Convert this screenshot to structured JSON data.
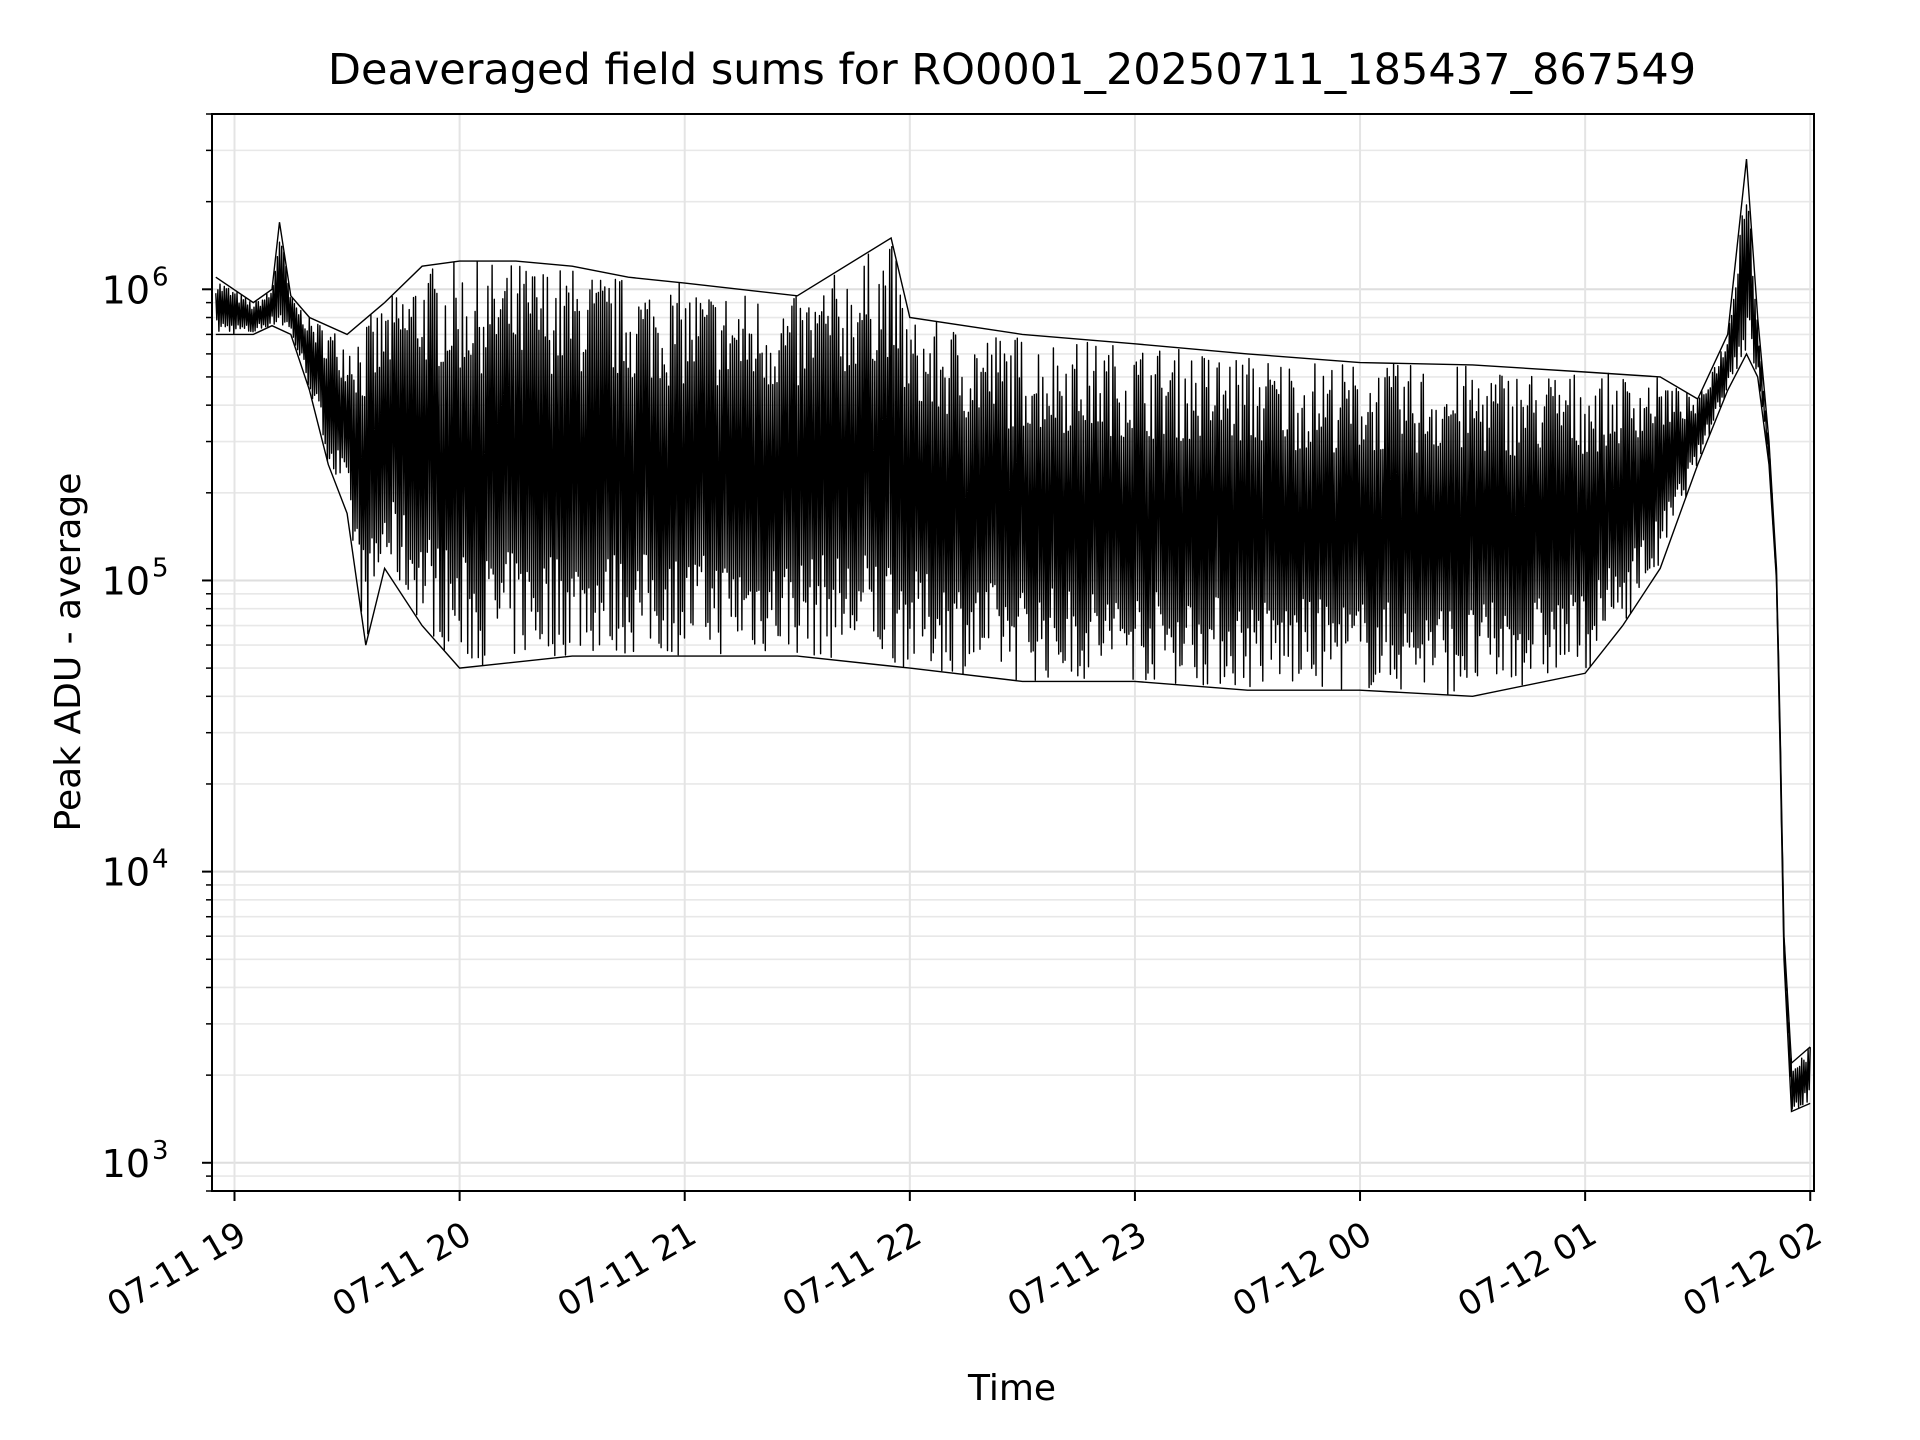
{
  "chart_data": {
    "type": "line",
    "title": "Deaveraged field sums for RO0001_20250711_185437_867549",
    "xlabel": "Time",
    "ylabel": "Peak ADU - average",
    "y_scale": "log",
    "xlim": [
      "2025-07-11 18:54",
      "2025-07-12 02:01"
    ],
    "ylim": [
      800,
      4000000
    ],
    "grid": true,
    "x_ticks": [
      {
        "t": "2025-07-11 19:00",
        "label": "07-11 19"
      },
      {
        "t": "2025-07-11 20:00",
        "label": "07-11 20"
      },
      {
        "t": "2025-07-11 21:00",
        "label": "07-11 21"
      },
      {
        "t": "2025-07-11 22:00",
        "label": "07-11 22"
      },
      {
        "t": "2025-07-11 23:00",
        "label": "07-11 23"
      },
      {
        "t": "2025-07-12 00:00",
        "label": "07-12 00"
      },
      {
        "t": "2025-07-12 01:00",
        "label": "07-12 01"
      },
      {
        "t": "2025-07-12 02:00",
        "label": "07-12 02"
      }
    ],
    "y_ticks": [
      {
        "value": 1000,
        "base": "10",
        "exp": "3"
      },
      {
        "value": 10000,
        "base": "10",
        "exp": "4"
      },
      {
        "value": 100000,
        "base": "10",
        "exp": "5"
      },
      {
        "value": 1000000,
        "base": "10",
        "exp": "6"
      }
    ],
    "series": [
      {
        "color": "#000000",
        "upper_envelope": [
          [
            "2025-07-11 18:55",
            1100000
          ],
          [
            "2025-07-11 19:05",
            900000
          ],
          [
            "2025-07-11 19:10",
            1000000
          ],
          [
            "2025-07-11 19:12",
            1700000
          ],
          [
            "2025-07-11 19:15",
            950000
          ],
          [
            "2025-07-11 19:20",
            800000
          ],
          [
            "2025-07-11 19:30",
            700000
          ],
          [
            "2025-07-11 19:40",
            900000
          ],
          [
            "2025-07-11 19:50",
            1200000
          ],
          [
            "2025-07-11 20:00",
            1250000
          ],
          [
            "2025-07-11 20:15",
            1250000
          ],
          [
            "2025-07-11 20:30",
            1200000
          ],
          [
            "2025-07-11 20:45",
            1100000
          ],
          [
            "2025-07-11 21:00",
            1050000
          ],
          [
            "2025-07-11 21:30",
            950000
          ],
          [
            "2025-07-11 21:55",
            1500000
          ],
          [
            "2025-07-11 22:00",
            800000
          ],
          [
            "2025-07-11 22:30",
            700000
          ],
          [
            "2025-07-11 23:00",
            650000
          ],
          [
            "2025-07-11 23:30",
            600000
          ],
          [
            "2025-07-12 00:00",
            560000
          ],
          [
            "2025-07-12 00:30",
            550000
          ],
          [
            "2025-07-12 01:00",
            520000
          ],
          [
            "2025-07-12 01:20",
            500000
          ],
          [
            "2025-07-12 01:30",
            420000
          ],
          [
            "2025-07-12 01:38",
            700000
          ],
          [
            "2025-07-12 01:43",
            2800000
          ],
          [
            "2025-07-12 01:46",
            800000
          ],
          [
            "2025-07-12 01:49",
            300000
          ],
          [
            "2025-07-12 01:51",
            110000
          ],
          [
            "2025-07-12 01:52",
            30000
          ],
          [
            "2025-07-12 01:53",
            6000
          ],
          [
            "2025-07-12 01:55",
            2200
          ],
          [
            "2025-07-12 02:00",
            2500
          ]
        ],
        "lower_envelope": [
          [
            "2025-07-11 18:55",
            700000
          ],
          [
            "2025-07-11 19:05",
            700000
          ],
          [
            "2025-07-11 19:10",
            750000
          ],
          [
            "2025-07-11 19:15",
            700000
          ],
          [
            "2025-07-11 19:20",
            450000
          ],
          [
            "2025-07-11 19:25",
            250000
          ],
          [
            "2025-07-11 19:30",
            170000
          ],
          [
            "2025-07-11 19:35",
            60000
          ],
          [
            "2025-07-11 19:40",
            110000
          ],
          [
            "2025-07-11 19:50",
            70000
          ],
          [
            "2025-07-11 20:00",
            50000
          ],
          [
            "2025-07-11 20:30",
            55000
          ],
          [
            "2025-07-11 21:00",
            55000
          ],
          [
            "2025-07-11 21:30",
            55000
          ],
          [
            "2025-07-11 22:00",
            50000
          ],
          [
            "2025-07-11 22:30",
            45000
          ],
          [
            "2025-07-11 23:00",
            45000
          ],
          [
            "2025-07-11 23:30",
            42000
          ],
          [
            "2025-07-12 00:00",
            42000
          ],
          [
            "2025-07-12 00:30",
            40000
          ],
          [
            "2025-07-12 01:00",
            48000
          ],
          [
            "2025-07-12 01:10",
            70000
          ],
          [
            "2025-07-12 01:20",
            110000
          ],
          [
            "2025-07-12 01:30",
            250000
          ],
          [
            "2025-07-12 01:38",
            450000
          ],
          [
            "2025-07-12 01:43",
            600000
          ],
          [
            "2025-07-12 01:46",
            500000
          ],
          [
            "2025-07-12 01:49",
            250000
          ],
          [
            "2025-07-12 01:51",
            100000
          ],
          [
            "2025-07-12 01:52",
            25000
          ],
          [
            "2025-07-12 01:53",
            5000
          ],
          [
            "2025-07-12 01:55",
            1500
          ],
          [
            "2025-07-12 02:00",
            1600
          ]
        ]
      }
    ]
  }
}
